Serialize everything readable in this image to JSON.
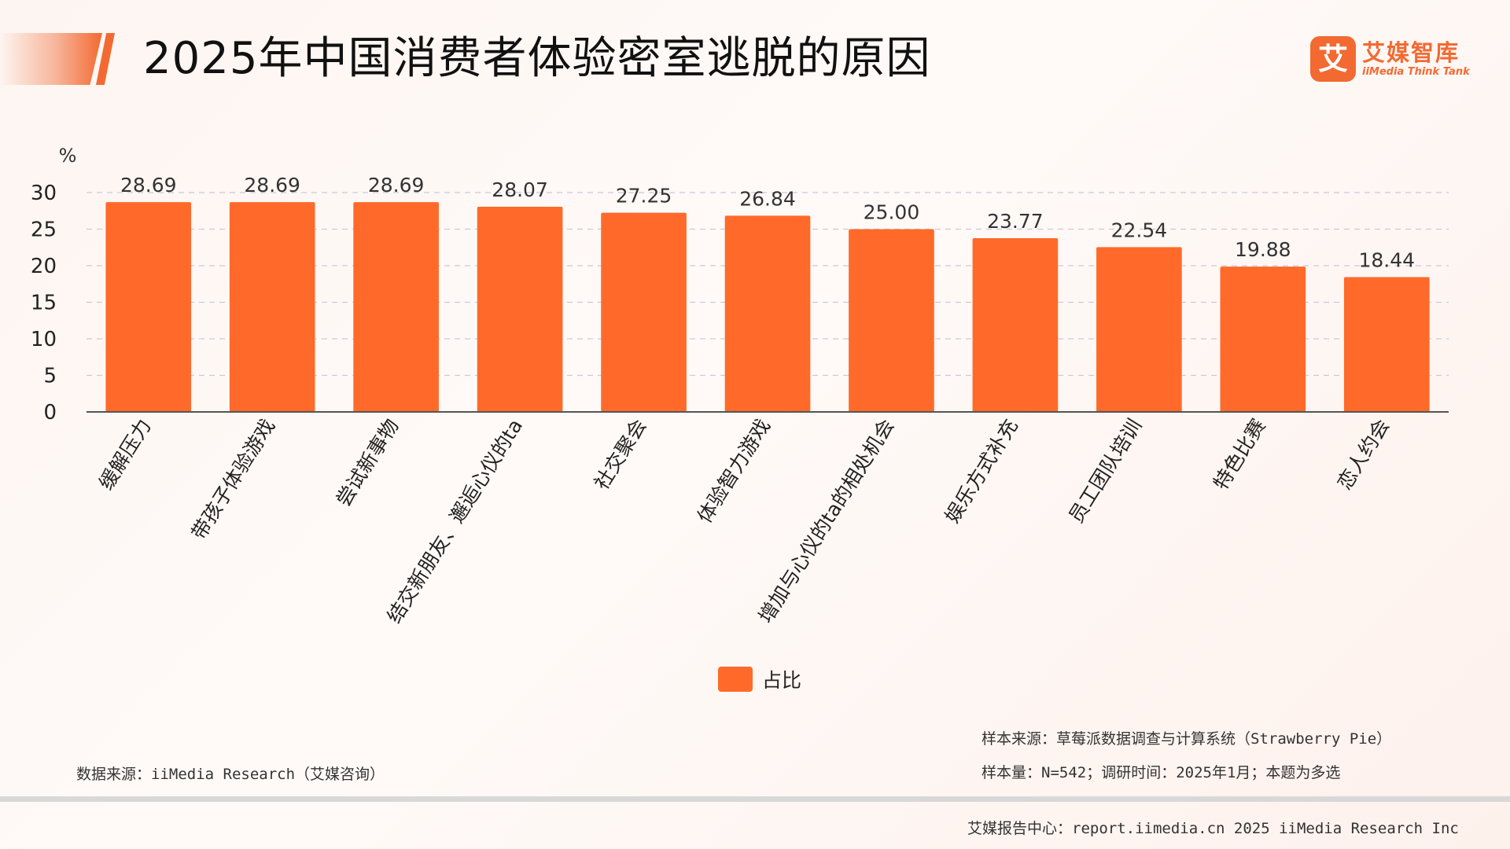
{
  "header": {
    "title": "2025年中国消费者体验密室逃脱的原因",
    "logo_mark": "艾",
    "logo_cn": "艾媒智库",
    "logo_en": "iiMedia Think Tank"
  },
  "chart_data": {
    "type": "bar",
    "title": "2025年中国消费者体验密室逃脱的原因",
    "ylabel": "%",
    "ylim": [
      0,
      30
    ],
    "yticks": [
      0,
      5,
      10,
      15,
      20,
      25,
      30
    ],
    "grid": true,
    "legend_position": "bottom",
    "categories": [
      "缓解压力",
      "带孩子体验游戏",
      "尝试新事物",
      "结交新朋友、邂逅心仪的ta",
      "社交聚会",
      "体验智力游戏",
      "增加与心仪的ta的相处机会",
      "娱乐方式补充",
      "员工团队培训",
      "特色比赛",
      "恋人约会"
    ],
    "series": [
      {
        "name": "占比",
        "values": [
          28.69,
          28.69,
          28.69,
          28.07,
          27.25,
          26.84,
          25.0,
          23.77,
          22.54,
          19.88,
          18.44
        ],
        "labels": [
          "28.69",
          "28.69",
          "28.69",
          "28.07",
          "27.25",
          "26.84",
          "25.00",
          "23.77",
          "22.54",
          "19.88",
          "18.44"
        ]
      }
    ],
    "color": "#ff6a2a"
  },
  "legend": {
    "label": "占比"
  },
  "notes": {
    "sample_source": "样本来源：草莓派数据调查与计算系统（Strawberry Pie）",
    "sample_size": "样本量：N=542；调研时间：2025年1月；本题为多选",
    "data_source": "数据来源：iiMedia Research（艾媒咨询）",
    "footer": "艾媒报告中心：report.iimedia.cn   2025 iiMedia Research Inc"
  },
  "colors": {
    "accent": "#f26a32",
    "bar": "#ff6a2a"
  }
}
